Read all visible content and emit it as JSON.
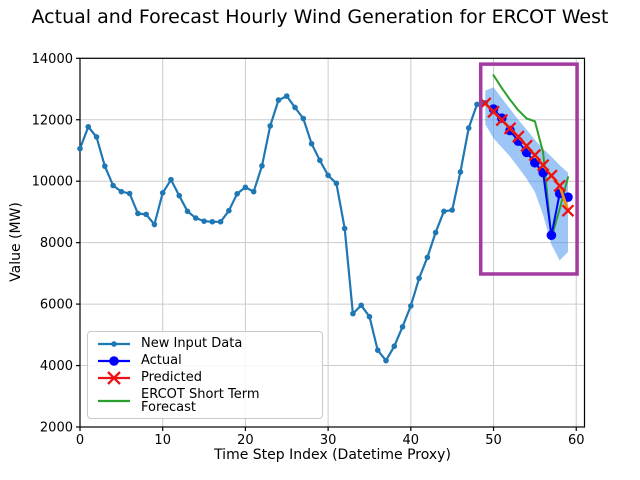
{
  "title": "Actual and Forecast Hourly Wind Generation for ERCOT West",
  "chart_data": {
    "type": "line",
    "title": "Actual and Forecast Hourly Wind Generation for ERCOT West",
    "xlabel": "Time Step Index (Datetime Proxy)",
    "ylabel": "Value (MW)",
    "xlim": [
      0,
      61
    ],
    "ylim": [
      2000,
      14000
    ],
    "xticks": [
      0,
      10,
      20,
      30,
      40,
      50,
      60
    ],
    "yticks": [
      2000,
      4000,
      6000,
      8000,
      10000,
      12000,
      14000
    ],
    "grid": true,
    "grid_color": "#cccccc",
    "spine_color": "#000000",
    "legend_position": "lower-left",
    "series": [
      {
        "name": "New Input Data",
        "color": "#1f77b4",
        "marker": "dot-small",
        "marker_color": "#1f77b4",
        "line_width": 2.2,
        "x0": 0,
        "values": [
          11060,
          11770,
          11440,
          10490,
          9860,
          9660,
          9600,
          8950,
          8920,
          8590,
          9620,
          10050,
          9530,
          9020,
          8800,
          8700,
          8680,
          8680,
          9040,
          9590,
          9800,
          9660,
          10500,
          11800,
          12640,
          12770,
          12400,
          12040,
          11220,
          10680,
          10190,
          9930,
          8460,
          5690,
          5960,
          5590,
          4500,
          4160,
          4630,
          5260,
          5940,
          6840,
          7520,
          8330,
          9020,
          9060,
          10300,
          11730,
          12500,
          12550
        ]
      },
      {
        "name": "Actual",
        "color": "#0000ff",
        "marker": "dot",
        "marker_color": "#0000ff",
        "line_width": 2,
        "x0": 50,
        "values": [
          12350,
          12050,
          11650,
          11300,
          10940,
          10600,
          10280,
          8240,
          9600,
          9480
        ]
      },
      {
        "name": "Predicted",
        "color": "#ff8c00",
        "legend_color": "#ee1111",
        "marker": "x",
        "marker_color": "#ee1111",
        "line_width": 2.8,
        "x0": 49,
        "values": [
          12530,
          12260,
          11990,
          11720,
          11450,
          11150,
          10850,
          10520,
          10180,
          9850,
          9040
        ]
      },
      {
        "name": "ERCOT Short Term Forecast",
        "color": "#2ca02c",
        "marker": "none",
        "marker_color": "#2ca02c",
        "line_width": 2,
        "x0": 50,
        "values": [
          13450,
          13030,
          12650,
          12310,
          12040,
          11950,
          10940,
          8150,
          9100,
          10130
        ]
      }
    ],
    "uncertainty_band": {
      "x0": 49,
      "color": "#3c8ef0",
      "opacity": 0.5,
      "upper": [
        12950,
        13060,
        12700,
        12350,
        12000,
        11680,
        11350,
        11050,
        10800,
        10520,
        10280
      ],
      "lower": [
        11850,
        11400,
        11100,
        10800,
        10450,
        10080,
        9650,
        8900,
        7940,
        7420,
        7700
      ]
    },
    "highlight_box": {
      "x_min": 48.45,
      "x_max": 60.1,
      "y_min": 6980,
      "y_max": 13810,
      "color": "#a23aa0",
      "line_width": 3.5
    }
  }
}
